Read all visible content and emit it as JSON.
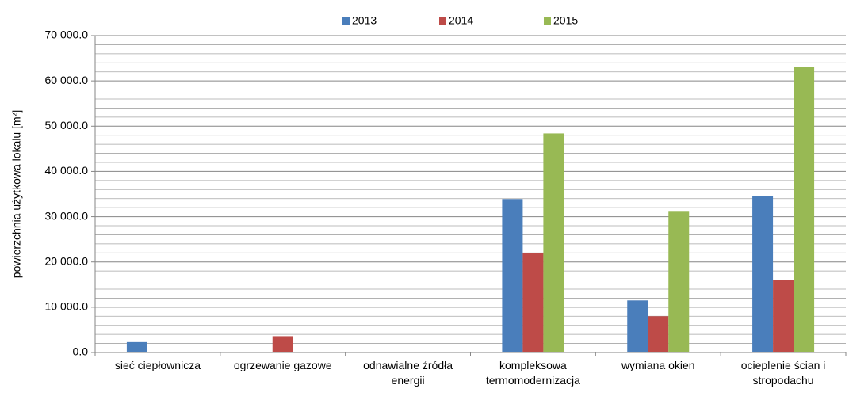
{
  "chart_data": {
    "type": "bar",
    "y_label": "powierzchnia użytkowa lokalu [m²]",
    "categories": [
      "sieć ciepłownicza",
      "ogrzewanie gazowe",
      "odnawialne źródła energii",
      "kompleksowa termomodernizacja",
      "wymiana okien",
      "ocieplenie ścian i stropodachu"
    ],
    "series": [
      {
        "name": "2013",
        "color": "#4a7ebb",
        "values": [
          2300,
          0,
          0,
          33900,
          11500,
          34600
        ]
      },
      {
        "name": "2014",
        "color": "#be4b48",
        "values": [
          0,
          3600,
          0,
          21900,
          8000,
          16000
        ]
      },
      {
        "name": "2015",
        "color": "#98b954",
        "values": [
          0,
          0,
          0,
          48400,
          31100,
          63000
        ]
      }
    ],
    "ylim": [
      0,
      70000
    ],
    "yticks": [
      {
        "value": 0,
        "label": "0.0"
      },
      {
        "value": 10000,
        "label": "10 000.0"
      },
      {
        "value": 20000,
        "label": "20 000.0"
      },
      {
        "value": 30000,
        "label": "30 000.0"
      },
      {
        "value": 40000,
        "label": "40 000.0"
      },
      {
        "value": 50000,
        "label": "50 000.0"
      },
      {
        "value": 60000,
        "label": "60 000.0"
      },
      {
        "value": 70000,
        "label": "70 000.0"
      }
    ],
    "yminorticks": [
      2000,
      4000,
      6000,
      8000,
      12000,
      14000,
      16000,
      18000,
      22000,
      24000,
      26000,
      28000,
      32000,
      34000,
      36000,
      38000,
      42000,
      44000,
      46000,
      48000,
      52000,
      54000,
      56000,
      58000,
      62000,
      64000,
      66000,
      68000
    ],
    "grid": true,
    "legend": "top"
  }
}
